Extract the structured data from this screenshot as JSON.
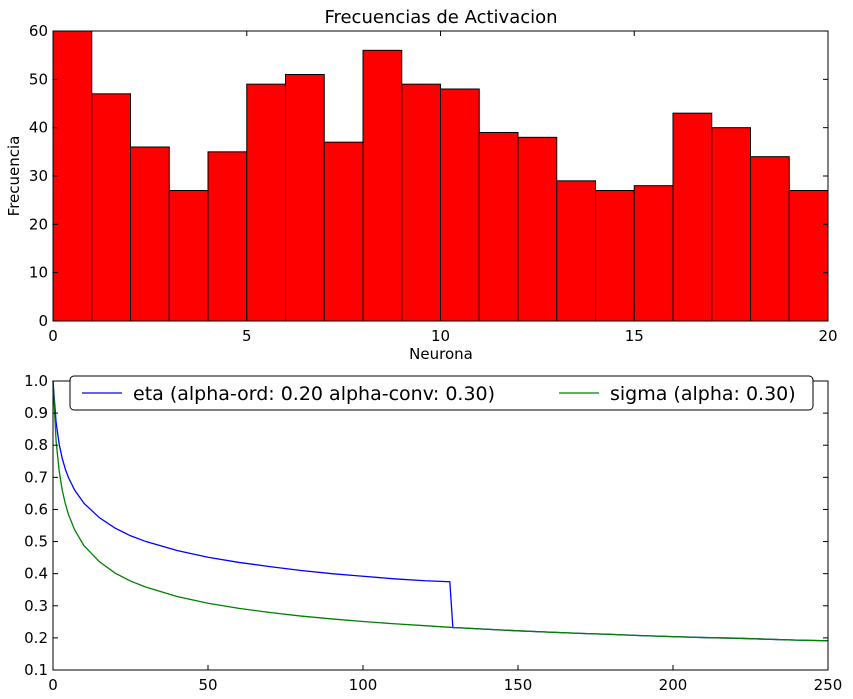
{
  "chart_data": [
    {
      "type": "bar",
      "title": "Frecuencias de Activacion",
      "xlabel": "Neurona",
      "ylabel": "Frecuencia",
      "xlim": [
        0,
        20
      ],
      "ylim": [
        0,
        60
      ],
      "xticks": [
        "0",
        "5",
        "10",
        "15",
        "20"
      ],
      "yticks": [
        "0",
        "10",
        "20",
        "30",
        "40",
        "50",
        "60"
      ],
      "categories": [
        "0",
        "1",
        "2",
        "3",
        "4",
        "5",
        "6",
        "7",
        "8",
        "9",
        "10",
        "11",
        "12",
        "13",
        "14",
        "15",
        "16",
        "17",
        "18",
        "19"
      ],
      "values": [
        60,
        47,
        36,
        27,
        35,
        49,
        51,
        37,
        56,
        49,
        48,
        39,
        38,
        29,
        27,
        28,
        43,
        40,
        34,
        27
      ],
      "bar_color": "#ff0000",
      "edge_color": "#000000",
      "grid": false
    },
    {
      "type": "line",
      "title": "",
      "xlabel": "",
      "ylabel": "",
      "xlim": [
        0,
        250
      ],
      "ylim": [
        0.1,
        1.0
      ],
      "xticks": [
        "0",
        "50",
        "100",
        "150",
        "200",
        "250"
      ],
      "yticks": [
        "0.1",
        "0.2",
        "0.3",
        "0.4",
        "0.5",
        "0.6",
        "0.7",
        "0.8",
        "0.9",
        "1.0"
      ],
      "legend_position": "top-center",
      "grid": false,
      "series": [
        {
          "name": "eta (alpha-ord: 0.20 alpha-conv: 0.30)",
          "color": "#0000ff",
          "x": [
            0,
            1,
            2,
            3,
            4,
            5,
            7,
            10,
            15,
            20,
            25,
            30,
            40,
            50,
            60,
            70,
            80,
            90,
            100,
            110,
            120,
            128,
            129,
            130,
            140,
            150,
            160,
            170,
            180,
            190,
            200,
            210,
            220,
            230,
            240,
            250
          ],
          "y": [
            1.0,
            0.871,
            0.803,
            0.758,
            0.725,
            0.699,
            0.66,
            0.619,
            0.574,
            0.542,
            0.518,
            0.5,
            0.472,
            0.451,
            0.435,
            0.422,
            0.41,
            0.4,
            0.392,
            0.384,
            0.378,
            0.375,
            0.232,
            0.232,
            0.227,
            0.222,
            0.218,
            0.214,
            0.211,
            0.207,
            0.204,
            0.201,
            0.199,
            0.196,
            0.193,
            0.191
          ]
        },
        {
          "name": "sigma (alpha: 0.30)",
          "color": "#008000",
          "x": [
            0,
            1,
            2,
            3,
            4,
            5,
            7,
            10,
            15,
            20,
            25,
            30,
            40,
            50,
            60,
            70,
            80,
            90,
            100,
            110,
            120,
            128,
            130,
            140,
            150,
            160,
            170,
            180,
            190,
            200,
            210,
            220,
            230,
            240,
            250
          ],
          "y": [
            1.0,
            0.812,
            0.719,
            0.659,
            0.617,
            0.584,
            0.536,
            0.487,
            0.437,
            0.402,
            0.377,
            0.358,
            0.329,
            0.308,
            0.292,
            0.279,
            0.268,
            0.259,
            0.251,
            0.244,
            0.238,
            0.233,
            0.232,
            0.227,
            0.222,
            0.218,
            0.214,
            0.211,
            0.207,
            0.204,
            0.201,
            0.199,
            0.196,
            0.193,
            0.191
          ]
        }
      ]
    }
  ]
}
